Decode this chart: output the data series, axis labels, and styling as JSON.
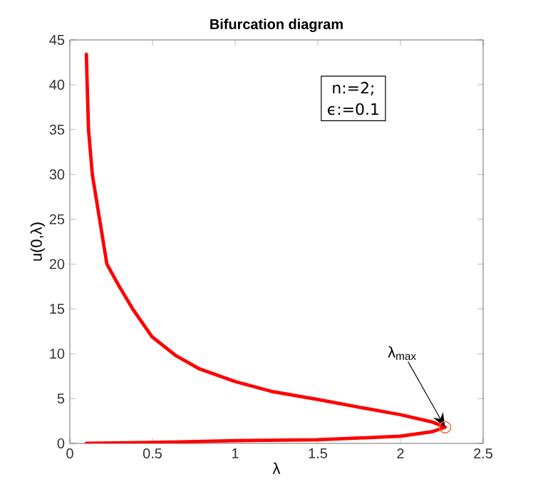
{
  "chart_data": {
    "type": "line",
    "title": "Bifurcation diagram",
    "xlabel": "λ",
    "ylabel": "u(0,λ)",
    "xlim": [
      0,
      2.5
    ],
    "ylim": [
      0,
      45
    ],
    "xticks": [
      0,
      0.5,
      1,
      1.5,
      2,
      2.5
    ],
    "yticks": [
      0,
      5,
      10,
      15,
      20,
      25,
      30,
      35,
      40,
      45
    ],
    "grid": false,
    "annotations": [
      "n:=2;",
      "ϵ:=0.1",
      {
        "text": "λ$_{max}$",
        "x": 2.27,
        "y": 1.8
      }
    ],
    "series": [
      {
        "color": "#ff0000",
        "marker": "none",
        "line_style": "solid",
        "x": [
          0.1,
          0.105,
          0.113,
          0.136,
          0.18,
          0.224,
          0.296,
          0.38,
          0.497,
          0.64,
          0.785,
          1.0,
          1.22,
          1.5,
          1.79,
          2.0,
          2.19,
          2.27,
          2.19,
          2.0,
          1.5,
          1.0,
          0.5,
          0.1
        ],
        "values": [
          43.4,
          40,
          35,
          30,
          25,
          20,
          17.6,
          15,
          11.9,
          9.8,
          8.3,
          6.9,
          5.8,
          4.9,
          3.9,
          3.2,
          2.4,
          1.8,
          1.3,
          0.8,
          0.4,
          0.3,
          0.1,
          0
        ]
      },
      {
        "type": "scatter",
        "color": "#f26c3c",
        "marker": "circle",
        "x": [
          2.27
        ],
        "values": [
          1.8
        ]
      }
    ]
  }
}
